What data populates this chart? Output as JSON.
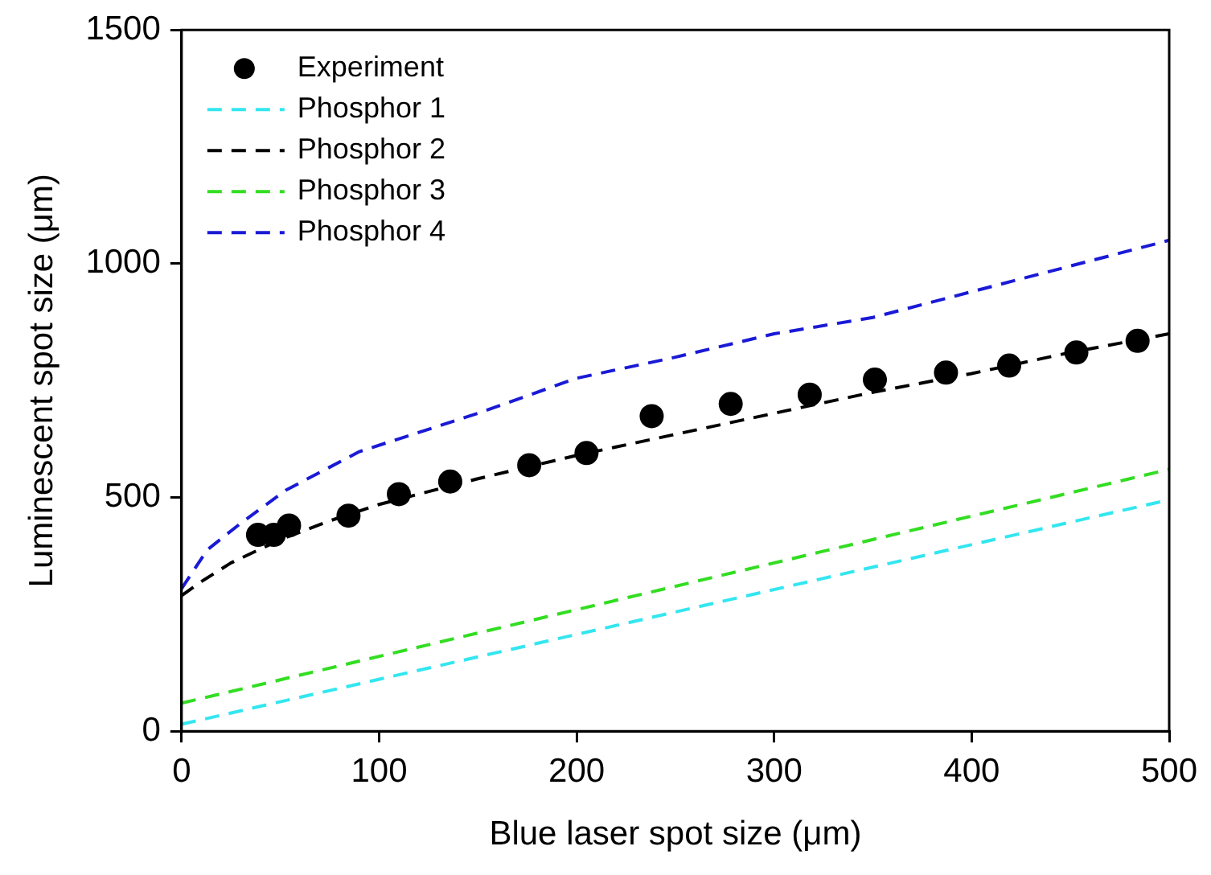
{
  "chart_data": {
    "type": "line",
    "xlabel": "Blue laser spot size (μm)",
    "ylabel": "Luminescent spot size (μm)",
    "xlim": [
      0,
      500
    ],
    "ylim": [
      0,
      1500
    ],
    "xticks": [
      0,
      100,
      200,
      300,
      400,
      500
    ],
    "yticks": [
      0,
      500,
      1000,
      1500
    ],
    "grid": false,
    "legend": "top left",
    "series": [
      {
        "name": "Experiment",
        "type": "scatter",
        "marker": "circle",
        "color": "#000000",
        "x": [
          38.7,
          46.7,
          54.4,
          84.5,
          110,
          136,
          176,
          205,
          238,
          278,
          318,
          351,
          387,
          419,
          453,
          484
        ],
        "values": [
          420,
          420,
          440,
          461,
          507,
          534,
          569,
          595,
          674,
          700,
          720,
          752,
          767,
          782,
          810,
          835
        ]
      },
      {
        "name": "Phosphor 1",
        "type": "line",
        "line_style": "dashed",
        "color": "#33e6f0",
        "x": [
          0,
          500
        ],
        "values": [
          15,
          495
        ]
      },
      {
        "name": "Phosphor 2",
        "type": "line",
        "line_style": "dashed",
        "color": "#000000",
        "x": [
          0,
          10,
          25,
          50,
          75,
          100,
          150,
          200,
          250,
          300,
          350,
          400,
          450,
          500
        ],
        "values": [
          290,
          320,
          360,
          410,
          450,
          485,
          540,
          590,
          635,
          680,
          725,
          765,
          810,
          850
        ]
      },
      {
        "name": "Phosphor 3",
        "type": "line",
        "line_style": "dashed",
        "color": "#33dd22",
        "x": [
          0,
          500
        ],
        "values": [
          60,
          560
        ]
      },
      {
        "name": "Phosphor 4",
        "type": "line",
        "line_style": "dashed",
        "color": "#1a1ad6",
        "x": [
          0,
          13,
          30,
          53,
          90,
          150,
          200,
          250,
          300,
          350,
          400,
          450,
          500
        ],
        "values": [
          305,
          388,
          445,
          516,
          598,
          680,
          755,
          800,
          850,
          885,
          940,
          995,
          1050
        ]
      }
    ]
  }
}
